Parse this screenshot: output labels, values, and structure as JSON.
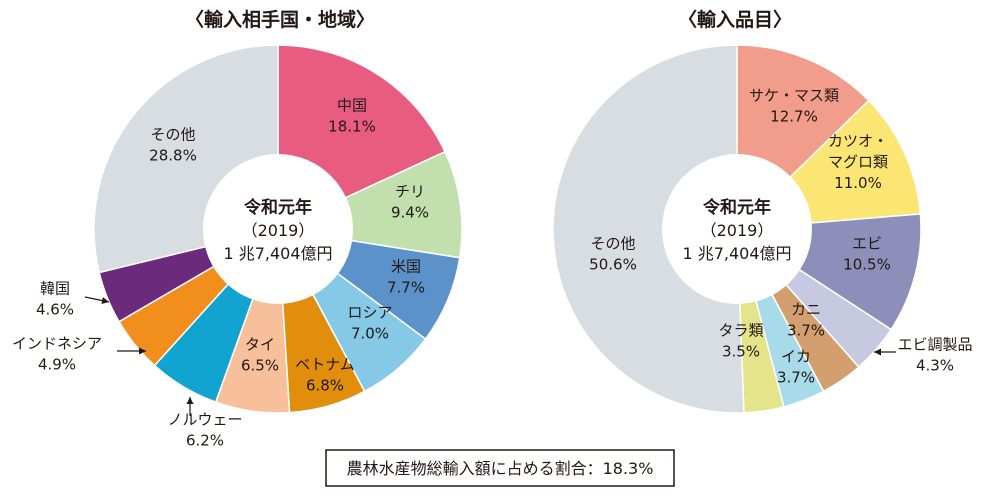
{
  "chart_data": [
    {
      "type": "pie",
      "title": "〈輸入相手国・地域〉",
      "center_label": [
        "令和元年",
        "（2019）",
        "1 兆7,404億円"
      ],
      "slices": [
        {
          "label": "中国",
          "value": 18.1,
          "value_text": "18.1%",
          "color": "#e95c82"
        },
        {
          "label": "チリ",
          "value": 9.4,
          "value_text": "9.4%",
          "color": "#c2e0ad"
        },
        {
          "label": "米国",
          "value": 7.7,
          "value_text": "7.7%",
          "color": "#5b92c9"
        },
        {
          "label": "ロシア",
          "value": 7.0,
          "value_text": "7.0%",
          "color": "#85c9e6"
        },
        {
          "label": "ベトナム",
          "value": 6.8,
          "value_text": "6.8%",
          "color": "#e08e0b"
        },
        {
          "label": "タイ",
          "value": 6.5,
          "value_text": "6.5%",
          "color": "#f8c09a"
        },
        {
          "label": "ノルウェー",
          "value": 6.2,
          "value_text": "6.2%",
          "color": "#12a4d0"
        },
        {
          "label": "インドネシア",
          "value": 4.9,
          "value_text": "4.9%",
          "color": "#f28e1c"
        },
        {
          "label": "韓国",
          "value": 4.6,
          "value_text": "4.6%",
          "color": "#6c2a7c"
        },
        {
          "label": "その他",
          "value": 28.8,
          "value_text": "28.8%",
          "color": "#d8dde2"
        }
      ]
    },
    {
      "type": "pie",
      "title": "〈輸入品目〉",
      "center_label": [
        "令和元年",
        "（2019）",
        "1 兆7,404億円"
      ],
      "slices": [
        {
          "label": "サケ・マス類",
          "value": 12.7,
          "value_text": "12.7%",
          "color": "#f29c8c"
        },
        {
          "label": "カツオ・マグロ類",
          "label_lines": [
            "カツオ・",
            "マグロ類"
          ],
          "value": 11.0,
          "value_text": "11.0%",
          "color": "#fbe673"
        },
        {
          "label": "エビ",
          "value": 10.5,
          "value_text": "10.5%",
          "color": "#8d8fba"
        },
        {
          "label": "エビ調製品",
          "value": 4.3,
          "value_text": "4.3%",
          "color": "#c6c9df"
        },
        {
          "label": "カニ",
          "value": 3.7,
          "value_text": "3.7%",
          "color": "#d39f6f"
        },
        {
          "label": "イカ",
          "value": 3.7,
          "value_text": "3.7%",
          "color": "#a7dbe9"
        },
        {
          "label": "タラ類",
          "value": 3.5,
          "value_text": "3.5%",
          "color": "#e4e58b"
        },
        {
          "label": "その他",
          "value": 50.6,
          "value_text": "50.6%",
          "color": "#d8dde2"
        }
      ]
    }
  ],
  "footnote": "農林水産物総輸入額に占める割合：18.3%"
}
